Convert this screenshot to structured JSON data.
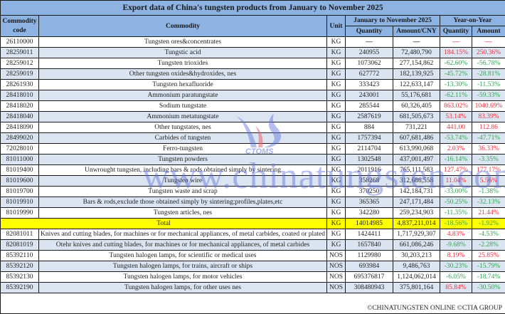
{
  "title": "Export data of China's tungsten products from January to November 2025",
  "headers": {
    "code": "Commodity code",
    "commodity": "Commodity",
    "unit": "Unit",
    "period": "January to November 2025",
    "yoy": "Year-on-Year",
    "quantity": "Quantity",
    "amount_cny": "Amount/CNY",
    "yoy_quantity": "Quantity",
    "yoy_amount": "Amount"
  },
  "rows": [
    {
      "code": "26110000",
      "commodity": "Tungsten ores&concentrates",
      "unit": "KG",
      "quantity": "—",
      "amount": "—",
      "yoy_quantity": "—",
      "yoy_amount": "—",
      "yq_sign": "dash",
      "ya_sign": "dash"
    },
    {
      "code": "28259011",
      "commodity": "Tungstic acid",
      "unit": "KG",
      "quantity": "240955",
      "amount": "72,480,790",
      "yoy_quantity": "184.15%",
      "yoy_amount": "250.36%",
      "yq_sign": "pos",
      "ya_sign": "pos"
    },
    {
      "code": "28259012",
      "commodity": "Tungsten trioxides",
      "unit": "KG",
      "quantity": "1073062",
      "amount": "277,154,862",
      "yoy_quantity": "-62.60%",
      "yoy_amount": "-56.78%",
      "yq_sign": "neg",
      "ya_sign": "neg"
    },
    {
      "code": "28259019",
      "commodity": "Other tungsten oxides&hydroxides, nes",
      "unit": "KG",
      "quantity": "627772",
      "amount": "182,139,925",
      "yoy_quantity": "-45.72%",
      "yoy_amount": "-28.81%",
      "yq_sign": "neg",
      "ya_sign": "neg"
    },
    {
      "code": "28261930",
      "commodity": "Tungsten hexafluoride",
      "unit": "KG",
      "quantity": "333423",
      "amount": "122,633,147",
      "yoy_quantity": "-13.30%",
      "yoy_amount": "-11.53%",
      "yq_sign": "neg",
      "ya_sign": "neg"
    },
    {
      "code": "28418010",
      "commodity": "Ammonium paratungstate",
      "unit": "KG",
      "quantity": "243001",
      "amount": "55,176,681",
      "yoy_quantity": "-62.11%",
      "yoy_amount": "-59.33%",
      "yq_sign": "neg",
      "ya_sign": "neg"
    },
    {
      "code": "28418020",
      "commodity": "Sodium tungstate",
      "unit": "KG",
      "quantity": "285544",
      "amount": "60,326,405",
      "yoy_quantity": "863.02%",
      "yoy_amount": "1040.69%",
      "yq_sign": "pos",
      "ya_sign": "pos"
    },
    {
      "code": "28418040",
      "commodity": "Ammonium metatungstate",
      "unit": "KG",
      "quantity": "2587619",
      "amount": "681,505,673",
      "yoy_quantity": "53.14%",
      "yoy_amount": "83.39%",
      "yq_sign": "pos",
      "ya_sign": "pos"
    },
    {
      "code": "28418090",
      "commodity": "Other tungstates, nes",
      "unit": "KG",
      "quantity": "884",
      "amount": "731,221",
      "yoy_quantity": "441.00",
      "yoy_amount": "112.86",
      "yq_sign": "pos",
      "ya_sign": "pos"
    },
    {
      "code": "28499020",
      "commodity": "Carbides of tungsten",
      "unit": "KG",
      "quantity": "1757394",
      "amount": "607,681,486",
      "yoy_quantity": "-53.74%",
      "yoy_amount": "-47.71%",
      "yq_sign": "neg",
      "ya_sign": "neg"
    },
    {
      "code": "72028010",
      "commodity": "Ferro-tungsten",
      "unit": "KG",
      "quantity": "2114704",
      "amount": "613,990,068",
      "yoy_quantity": "2.03%",
      "yoy_amount": "36.33%",
      "yq_sign": "pos",
      "ya_sign": "pos"
    },
    {
      "code": "81011000",
      "commodity": "Tungsten powders",
      "unit": "KG",
      "quantity": "1302548",
      "amount": "437,001,497",
      "yoy_quantity": "-16.14%",
      "yoy_amount": "-3.35%",
      "yq_sign": "neg",
      "ya_sign": "neg"
    },
    {
      "code": "81019400",
      "commodity": "Unwrought tungsten, including bars & rods obtained simply by sintering",
      "unit": "KG",
      "quantity": "2011916",
      "amount": "765,111,583",
      "yoy_quantity": "127.47%",
      "yoy_amount": "177.17%",
      "yq_sign": "pos",
      "ya_sign": "pos"
    },
    {
      "code": "81019600",
      "commodity": "Tungsten wire",
      "unit": "KG",
      "quantity": "358268",
      "amount": "312,686,558",
      "yoy_quantity": "11.04%",
      "yoy_amount": "5.56%",
      "yq_sign": "pos",
      "ya_sign": "pos"
    },
    {
      "code": "81019700",
      "commodity": "Tungsten waste and scrap",
      "unit": "KG",
      "quantity": "370250",
      "amount": "142,184,731",
      "yoy_quantity": "-33.00%",
      "yoy_amount": "-1.38%",
      "yq_sign": "neg",
      "ya_sign": "neg"
    },
    {
      "code": "81019910",
      "commodity": "Bars & rods,exclude those obtained simply by sintering;profiles,plates,etc",
      "unit": "KG",
      "quantity": "365365",
      "amount": "247,171,484",
      "yoy_quantity": "-50.25%",
      "yoy_amount": "-32.13%",
      "yq_sign": "neg",
      "ya_sign": "neg"
    },
    {
      "code": "81019990",
      "commodity": "Tungsten articles, nes",
      "unit": "KG",
      "quantity": "342280",
      "amount": "259,234,903",
      "yoy_quantity": "-11.35%",
      "yoy_amount": "21.44%",
      "yq_sign": "neg",
      "ya_sign": "pos"
    }
  ],
  "total": {
    "label": "Total",
    "unit": "KG",
    "quantity": "14014985",
    "amount": "4,837,211,014",
    "yoy_quantity": "-18.56%",
    "yoy_amount": "-1.92%"
  },
  "rows2": [
    {
      "code": "82081011",
      "commodity": "Knives and cutting blades, for machines or for mechanical appliances, of metal carbides, coated or plated",
      "unit": "KG",
      "quantity": "1424411",
      "amount": "1,717,929,307",
      "yoy_quantity": "4.83%",
      "yoy_amount": "-4.53%",
      "yq_sign": "pos",
      "ya_sign": "neg"
    },
    {
      "code": "82081019",
      "commodity": "Otehr knives and cutting blades, for machines or for mechanical appliances, of metal carbides",
      "unit": "KG",
      "quantity": "1657840",
      "amount": "661,086,246",
      "yoy_quantity": "-9.68%",
      "yoy_amount": "-2.28%",
      "yq_sign": "neg",
      "ya_sign": "neg"
    },
    {
      "code": "85392110",
      "commodity": "Tungsten halogen lamps, for scientific or medical uses",
      "unit": "NOS",
      "quantity": "1129980",
      "amount": "30,203,213",
      "yoy_quantity": "8.19%",
      "yoy_amount": "25.85%",
      "yq_sign": "pos",
      "ya_sign": "pos"
    },
    {
      "code": "85392120",
      "commodity": "Tungsten halogen lamps, for trains, aircraft or ships",
      "unit": "NOS",
      "quantity": "693984",
      "amount": "9,486,763",
      "yoy_quantity": "-30.23%",
      "yoy_amount": "-15.79%",
      "yq_sign": "neg",
      "ya_sign": "neg"
    },
    {
      "code": "85392130",
      "commodity": "Tungsten halogen lamps, for motor vehicles",
      "unit": "NOS",
      "quantity": "695376817",
      "amount": "1,124,062,014",
      "yoy_quantity": "-6.05%",
      "yoy_amount": "-18.74%",
      "yq_sign": "neg",
      "ya_sign": "neg"
    },
    {
      "code": "85392190",
      "commodity": "Tungsten halogen lamps, for other uses nes",
      "unit": "NOS",
      "quantity": "308480943",
      "amount": "375,801,164",
      "yoy_quantity": "85.84%",
      "yoy_amount": "-30.50%",
      "yq_sign": "pos",
      "ya_sign": "neg"
    }
  ],
  "footer": "©CHINATUNGSTEN ONLINE  ©CTIA GROUP",
  "watermark": {
    "url_text": "www.chinatungsten.com",
    "logo_text": "CTOMS"
  },
  "colors": {
    "header_bg": "#8db3e2",
    "alt_row": "#dbe5f1",
    "total_bg": "#ffff00",
    "positive": "#e8333f",
    "negative": "#2ea44f"
  }
}
